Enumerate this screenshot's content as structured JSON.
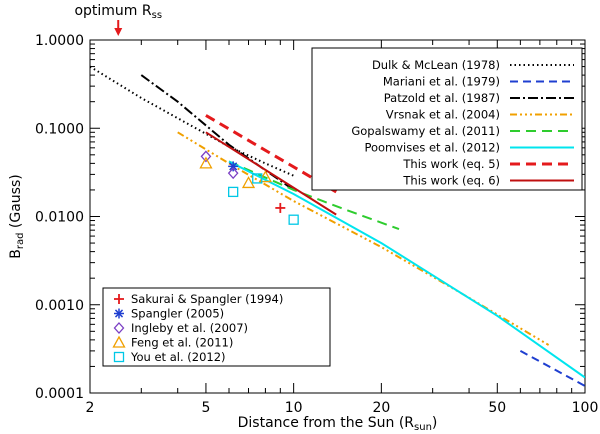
{
  "chart_data": {
    "type": "line",
    "xscale": "log",
    "yscale": "log",
    "xlim": [
      2,
      100
    ],
    "ylim": [
      0.0001,
      1.0
    ],
    "xlabel": "Distance from the Sun (R",
    "xlabel_sub": "sun",
    "xlabel_end": ")",
    "ylabel": "B",
    "ylabel_sub": "rad",
    "ylabel_end": " (Gauss)",
    "x_ticks": [
      2,
      5,
      10,
      20,
      50,
      100
    ],
    "x_tick_labels": [
      "2",
      "5",
      "10",
      "20",
      "50",
      "100"
    ],
    "y_ticks": [
      0.0001,
      0.001,
      0.01,
      0.1,
      1.0
    ],
    "y_tick_labels": [
      "0.0001",
      "0.0010",
      "0.0100",
      "0.1000",
      "1.0000"
    ],
    "annotation": {
      "text": "optimum R",
      "sub": "ss",
      "x": 2.5,
      "color": "#e41a1c"
    },
    "line_legend_position": "top-right",
    "marker_legend_position": "bottom-left",
    "series": [
      {
        "name": "Dulk & McLean (1978)",
        "color": "#000000",
        "dash": "1.5,3",
        "width": 2,
        "points": [
          [
            2,
            0.5
          ],
          [
            3,
            0.22
          ],
          [
            4,
            0.13
          ],
          [
            6,
            0.062
          ],
          [
            8,
            0.04
          ],
          [
            10,
            0.029
          ]
        ]
      },
      {
        "name": "Mariani et al. (1979)",
        "color": "#1f3fd0",
        "dash": "8,5",
        "width": 2,
        "points": [
          [
            60,
            0.0003
          ],
          [
            100,
            0.00012
          ]
        ]
      },
      {
        "name": "Patzold et al. (1987)",
        "color": "#000000",
        "dash": "10,3,2,3",
        "width": 2,
        "points": [
          [
            3,
            0.4
          ],
          [
            4,
            0.2
          ],
          [
            6,
            0.065
          ],
          [
            10,
            0.02
          ]
        ]
      },
      {
        "name": "Vrsnak et al. (2004)",
        "color": "#f0a000",
        "dash": "7,3,2,3,2,3,2,3",
        "width": 2,
        "points": [
          [
            4,
            0.09
          ],
          [
            6,
            0.04
          ],
          [
            10,
            0.015
          ],
          [
            20,
            0.0045
          ],
          [
            40,
            0.0012
          ],
          [
            75,
            0.00035
          ]
        ]
      },
      {
        "name": "Gopalswamy et al. (2011)",
        "color": "#2ecc2e",
        "dash": "10,6",
        "width": 2,
        "points": [
          [
            6,
            0.042
          ],
          [
            10,
            0.02
          ],
          [
            15,
            0.012
          ],
          [
            23,
            0.0072
          ]
        ]
      },
      {
        "name": "Poomvises et al. (2012)",
        "color": "#00e5ee",
        "dash": "",
        "width": 2,
        "points": [
          [
            6,
            0.042
          ],
          [
            10,
            0.018
          ],
          [
            20,
            0.005
          ],
          [
            50,
            0.00075
          ],
          [
            100,
            0.00015
          ]
        ]
      },
      {
        "name": "This work (eq. 5)",
        "color": "#e41a1c",
        "dash": "10,6",
        "width": 3,
        "points": [
          [
            5,
            0.14
          ],
          [
            14,
            0.019
          ]
        ]
      },
      {
        "name": "This work (eq. 6)",
        "color": "#c01010",
        "dash": "",
        "width": 2,
        "points": [
          [
            5,
            0.09
          ],
          [
            14,
            0.0105
          ]
        ]
      }
    ],
    "markers": [
      {
        "name": "Sakurai & Spangler (1994)",
        "symbol": "plus",
        "color": "#e41a1c",
        "points": [
          [
            9.0,
            0.0125
          ]
        ]
      },
      {
        "name": "Spangler (2005)",
        "symbol": "asterisk",
        "color": "#1f3fd0",
        "points": [
          [
            6.2,
            0.037
          ]
        ]
      },
      {
        "name": "Ingleby et al. (2007)",
        "symbol": "diamond",
        "color": "#7b3fc4",
        "points": [
          [
            5.0,
            0.048
          ],
          [
            6.2,
            0.031
          ]
        ]
      },
      {
        "name": "Feng et al. (2011)",
        "symbol": "triangle",
        "color": "#f0a000",
        "points": [
          [
            5.0,
            0.04
          ],
          [
            7.0,
            0.024
          ],
          [
            8.0,
            0.028
          ]
        ]
      },
      {
        "name": "You et al. (2012)",
        "symbol": "square",
        "color": "#00c8e6",
        "points": [
          [
            6.2,
            0.019
          ],
          [
            7.5,
            0.027
          ],
          [
            10.0,
            0.0092
          ]
        ]
      }
    ]
  }
}
